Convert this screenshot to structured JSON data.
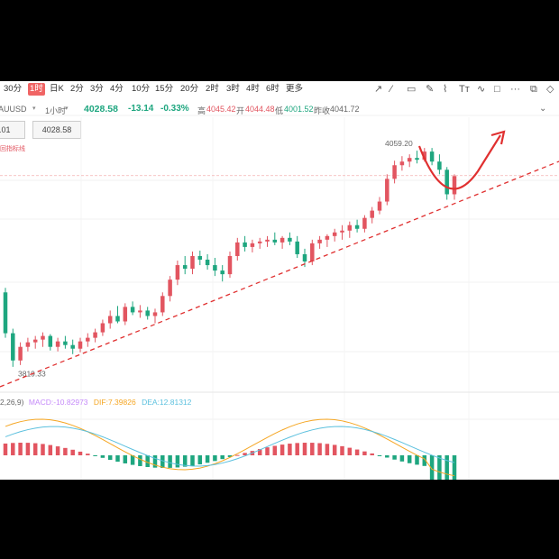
{
  "toolbar": {
    "timeframes": [
      "30分",
      "1时",
      "日K",
      "2分",
      "3分",
      "4分",
      "10分",
      "15分",
      "20分",
      "2时",
      "3时",
      "4时",
      "6时",
      "更多"
    ],
    "active": "1时"
  },
  "infobar": {
    "symbol": "AUUSD",
    "interval": "1小时",
    "price": "4028.58",
    "change": "-13.14",
    "change_pct": "-0.33%",
    "high_label": "高",
    "high": "4045.42",
    "open_label": "开",
    "open": "4044.48",
    "low_label": "低",
    "low": "4001.52",
    "prev_label": "昨收",
    "prev": "4041.72"
  },
  "order": {
    "left_value": ".01",
    "right_value": "4028.58",
    "note": "回指标线"
  },
  "macd": {
    "params": "2,26,9)",
    "macd_label": "MACD:",
    "macd_value": "-10.82973",
    "dif_label": "DIF:",
    "dif_value": "7.39826",
    "dea_label": "DEA:",
    "dea_value": "12.81312"
  },
  "colors": {
    "up": "#e25560",
    "down": "#1ea67f",
    "active_tab": "#f06464",
    "dif": "#f5a623",
    "dea": "#5bc0de",
    "trend": "#e03030"
  },
  "chart_data": {
    "type": "candlestick",
    "high_label": "4059.20",
    "low_label": "3819.33",
    "candles": [
      [
        3900,
        3905,
        3850,
        3855
      ],
      [
        3855,
        3860,
        3818,
        3825
      ],
      [
        3825,
        3845,
        3820,
        3840
      ],
      [
        3840,
        3850,
        3835,
        3845
      ],
      [
        3845,
        3852,
        3838,
        3848
      ],
      [
        3848,
        3856,
        3840,
        3852
      ],
      [
        3852,
        3854,
        3836,
        3840
      ],
      [
        3840,
        3850,
        3835,
        3846
      ],
      [
        3846,
        3852,
        3838,
        3842
      ],
      [
        3842,
        3848,
        3832,
        3838
      ],
      [
        3838,
        3850,
        3834,
        3846
      ],
      [
        3846,
        3855,
        3840,
        3850
      ],
      [
        3850,
        3860,
        3845,
        3856
      ],
      [
        3856,
        3870,
        3852,
        3866
      ],
      [
        3866,
        3880,
        3860,
        3874
      ],
      [
        3874,
        3885,
        3866,
        3868
      ],
      [
        3868,
        3888,
        3864,
        3884
      ],
      [
        3884,
        3890,
        3875,
        3878
      ],
      [
        3878,
        3886,
        3872,
        3880
      ],
      [
        3880,
        3884,
        3870,
        3874
      ],
      [
        3874,
        3882,
        3866,
        3878
      ],
      [
        3878,
        3900,
        3874,
        3896
      ],
      [
        3896,
        3918,
        3890,
        3914
      ],
      [
        3914,
        3935,
        3908,
        3930
      ],
      [
        3930,
        3940,
        3920,
        3926
      ],
      [
        3926,
        3945,
        3920,
        3940
      ],
      [
        3940,
        3946,
        3930,
        3936
      ],
      [
        3936,
        3942,
        3925,
        3930
      ],
      [
        3930,
        3938,
        3918,
        3924
      ],
      [
        3924,
        3930,
        3912,
        3920
      ],
      [
        3920,
        3945,
        3916,
        3940
      ],
      [
        3940,
        3960,
        3935,
        3955
      ],
      [
        3955,
        3962,
        3945,
        3950
      ],
      [
        3950,
        3958,
        3944,
        3954
      ],
      [
        3954,
        3960,
        3948,
        3956
      ],
      [
        3956,
        3962,
        3950,
        3958
      ],
      [
        3958,
        3966,
        3952,
        3955
      ],
      [
        3955,
        3962,
        3948,
        3960
      ],
      [
        3960,
        3966,
        3952,
        3956
      ],
      [
        3956,
        3962,
        3938,
        3942
      ],
      [
        3942,
        3948,
        3928,
        3934
      ],
      [
        3934,
        3958,
        3930,
        3954
      ],
      [
        3954,
        3962,
        3948,
        3958
      ],
      [
        3958,
        3964,
        3950,
        3962
      ],
      [
        3962,
        3970,
        3956,
        3966
      ],
      [
        3966,
        3974,
        3958,
        3968
      ],
      [
        3968,
        3978,
        3960,
        3974
      ],
      [
        3974,
        3980,
        3966,
        3970
      ],
      [
        3970,
        3985,
        3966,
        3982
      ],
      [
        3982,
        3994,
        3976,
        3990
      ],
      [
        3990,
        4005,
        3986,
        4000
      ],
      [
        4000,
        4030,
        3996,
        4025
      ],
      [
        4025,
        4045,
        4020,
        4040
      ],
      [
        4040,
        4050,
        4034,
        4044
      ],
      [
        4044,
        4052,
        4038,
        4048
      ],
      [
        4048,
        4056,
        4042,
        4046
      ],
      [
        4046,
        4059,
        4044,
        4055
      ],
      [
        4055,
        4059,
        4040,
        4044
      ],
      [
        4044,
        4052,
        4030,
        4035
      ],
      [
        4035,
        4038,
        4002,
        4008
      ],
      [
        4008,
        4030,
        4002,
        4028
      ]
    ]
  }
}
